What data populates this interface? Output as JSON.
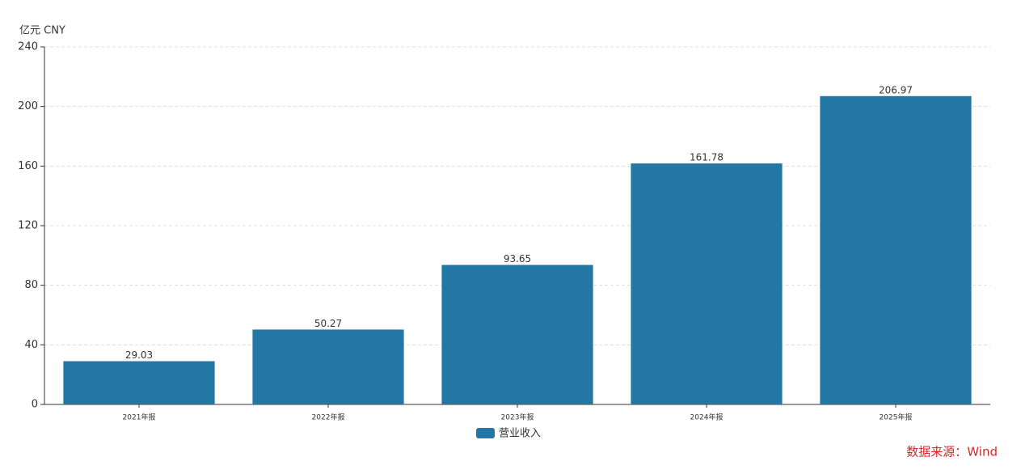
{
  "chart_data": {
    "type": "bar",
    "y_label": "亿元  CNY",
    "categories": [
      "2021年报",
      "2022年报",
      "2023年报",
      "2024年报",
      "2025年报"
    ],
    "series": [
      {
        "name": "营业收入",
        "color": "#2277a4",
        "values": [
          29.03,
          50.27,
          93.65,
          161.78,
          206.97
        ]
      }
    ],
    "ylim": [
      0,
      240
    ],
    "yticks": [
      0,
      40,
      80,
      120,
      160,
      200,
      240
    ],
    "grid": true,
    "legend_position": "bottom",
    "source": "数据来源：Wind"
  }
}
